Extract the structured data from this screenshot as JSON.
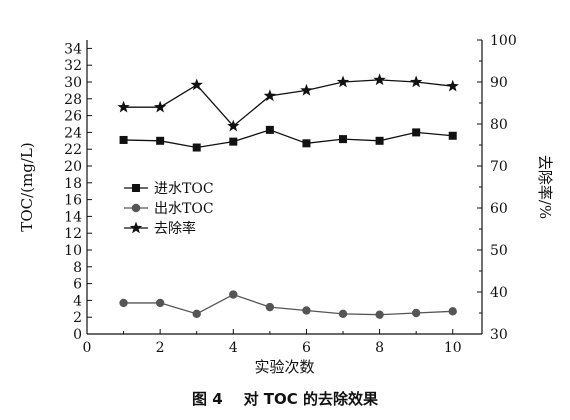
{
  "caption": {
    "figure_label": "图 4",
    "text": "对 TOC 的去除效果"
  },
  "chart_data": {
    "type": "line",
    "xlabel": "实验次数",
    "ylabel_left": "TOC/(mg/L)",
    "ylabel_right": "去除率/%",
    "x_ticks": [
      0,
      2,
      4,
      6,
      8,
      10
    ],
    "x_range": [
      0,
      10.8
    ],
    "y_left_ticks": [
      0,
      2,
      4,
      6,
      8,
      10,
      12,
      14,
      16,
      18,
      20,
      22,
      24,
      26,
      28,
      30,
      32,
      34
    ],
    "y_left_range": [
      0,
      35
    ],
    "y_right_ticks": [
      30,
      40,
      50,
      60,
      70,
      80,
      90,
      100
    ],
    "y_right_range": [
      30,
      100
    ],
    "grid": false,
    "legend_position": "center-left",
    "x": [
      1,
      2,
      3,
      4,
      5,
      6,
      7,
      8,
      9,
      10
    ],
    "series": [
      {
        "name": "进水TOC",
        "axis": "left",
        "marker": "square",
        "color": "#111111",
        "values": [
          23.1,
          23.0,
          22.2,
          22.9,
          24.3,
          22.7,
          23.2,
          23.0,
          24.0,
          23.6
        ]
      },
      {
        "name": "出水TOC",
        "axis": "left",
        "marker": "circle",
        "color": "#555555",
        "values": [
          3.7,
          3.7,
          2.4,
          4.7,
          3.2,
          2.8,
          2.4,
          2.3,
          2.5,
          2.7
        ]
      },
      {
        "name": "去除率",
        "axis": "right",
        "marker": "star",
        "color": "#111111",
        "values": [
          84.0,
          84.0,
          89.3,
          79.5,
          86.7,
          88.0,
          90.0,
          90.5,
          90.0,
          89.0
        ]
      }
    ]
  }
}
